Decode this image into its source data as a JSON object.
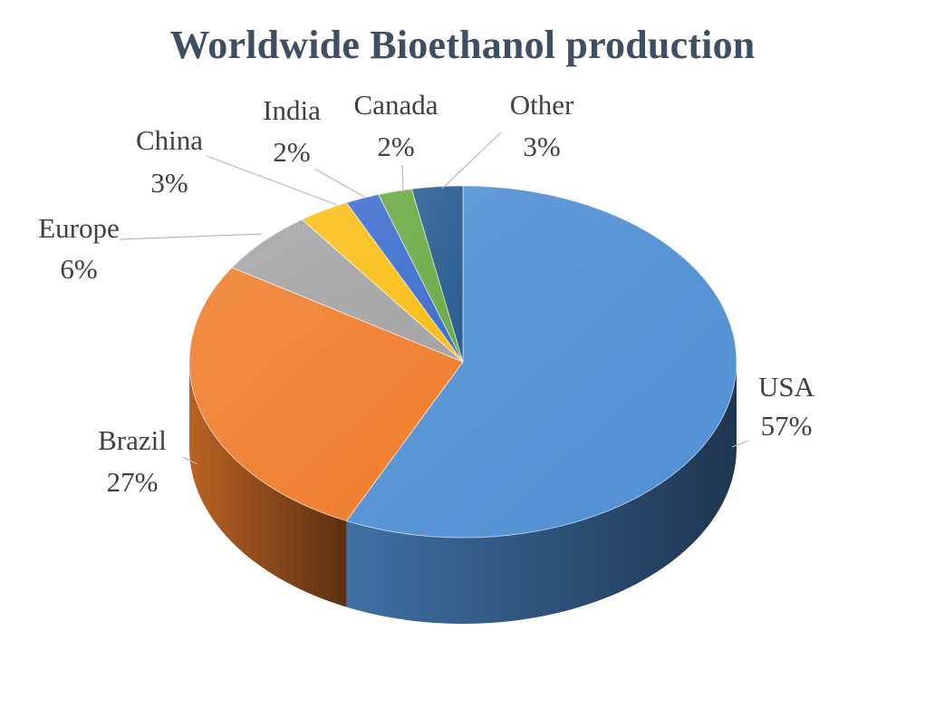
{
  "chart_data": {
    "type": "pie",
    "title": "Worldwide Bioethanol production",
    "slices": [
      {
        "name": "USA",
        "value": 57,
        "label": "57%",
        "color": "#4f8fd3"
      },
      {
        "name": "Brazil",
        "value": 27,
        "label": "27%",
        "color": "#ef7d2d"
      },
      {
        "name": "Europe",
        "value": 6,
        "label": "6%",
        "color": "#a5a5a5"
      },
      {
        "name": "China",
        "value": 3,
        "label": "3%",
        "color": "#f9bf18"
      },
      {
        "name": "India",
        "value": 2,
        "label": "2%",
        "color": "#3f6fcf"
      },
      {
        "name": "Canada",
        "value": 2,
        "label": "2%",
        "color": "#6bab45"
      },
      {
        "name": "Other",
        "value": 3,
        "label": "3%",
        "color": "#285d91"
      }
    ],
    "style": "3d-pie",
    "legend": "none",
    "data_labels": "outside with leader lines"
  }
}
